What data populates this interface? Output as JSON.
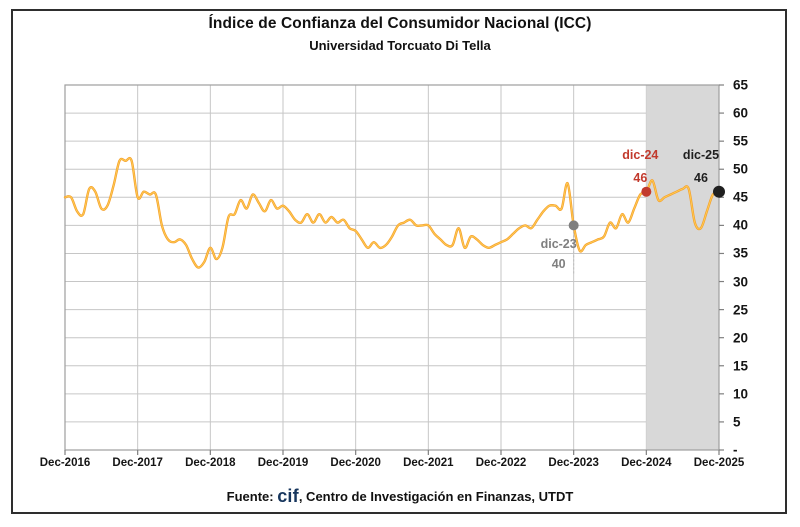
{
  "footer": {
    "prefix": "Fuente: ",
    "logo": "cif",
    "suffix": ", Centro de Investigación en Finanzas, UTDT",
    "logo_color": "#17365d"
  },
  "colors": {
    "line": "#f5a12f",
    "line_highlight": "#ffce54",
    "grid": "#c6c6c6",
    "plot_border": "#9e9e9e",
    "tick": "#7f7f7f",
    "forecast_band": "#d8d8d8",
    "text": "#151515"
  },
  "chart_data": {
    "type": "line",
    "title": "Índice de Confianza del Consumidor Nacional (ICC)",
    "subtitle": "Universidad Torcuato Di Tella",
    "frequency": "monthly",
    "x_start": "Dec-2016",
    "x_end": "Dec-2025",
    "x_tick_labels": [
      "Dec-2016",
      "Dec-2017",
      "Dec-2018",
      "Dec-2019",
      "Dec-2020",
      "Dec-2021",
      "Dec-2022",
      "Dec-2023",
      "Dec-2024",
      "Dec-2025"
    ],
    "y_ticks": [
      65,
      60,
      55,
      50,
      45,
      40,
      35,
      30,
      25,
      20,
      15,
      10,
      5
    ],
    "y_zero_label": "-",
    "ylim": [
      0,
      65
    ],
    "grid": true,
    "legend": false,
    "forecast_band": {
      "from_month_index": 96,
      "to_month_index": 108,
      "note": "shaded final year Dec-2024 to Dec-2025"
    },
    "series": [
      {
        "name": "ICC",
        "values": [
          45,
          45,
          42.5,
          42,
          46.5,
          46,
          43,
          43.5,
          47,
          51.5,
          51.5,
          51.5,
          45,
          46,
          45.5,
          45.5,
          40,
          37.5,
          37,
          37.5,
          36.5,
          34,
          32.5,
          33.5,
          36,
          34,
          36,
          41.5,
          42,
          44.5,
          43,
          45.5,
          44,
          42.5,
          44.5,
          43,
          43.5,
          42.5,
          41,
          40.5,
          42,
          40.5,
          42,
          40.5,
          41.5,
          40.5,
          41,
          39.5,
          39,
          37.5,
          36,
          37,
          36,
          36.5,
          38,
          40,
          40.5,
          41,
          40,
          40,
          40,
          38.5,
          37.5,
          36.5,
          36.5,
          39.5,
          36,
          38,
          37.5,
          36.5,
          36,
          36.5,
          37,
          37.5,
          38.5,
          39.5,
          40,
          39.5,
          41,
          42.5,
          43.5,
          43.5,
          43,
          47.5,
          40,
          35.5,
          36.5,
          37,
          37.5,
          38,
          40.5,
          39.5,
          42,
          40.5,
          43,
          45.5,
          46,
          48,
          44.5,
          45,
          45.5,
          46,
          46.5,
          46.5,
          40.5,
          39.5,
          42.5,
          45.5,
          46
        ]
      }
    ],
    "annotations": [
      {
        "label": "dic-23",
        "value_label": "40",
        "month_index": 84,
        "value": 40,
        "color": "#7f7f7f"
      },
      {
        "label": "dic-24",
        "value_label": "46",
        "month_index": 96,
        "value": 46,
        "color": "#c23a2d"
      },
      {
        "label": "dic-25",
        "value_label": "46",
        "month_index": 108,
        "value": 46,
        "color": "#1f1f1f"
      }
    ]
  }
}
